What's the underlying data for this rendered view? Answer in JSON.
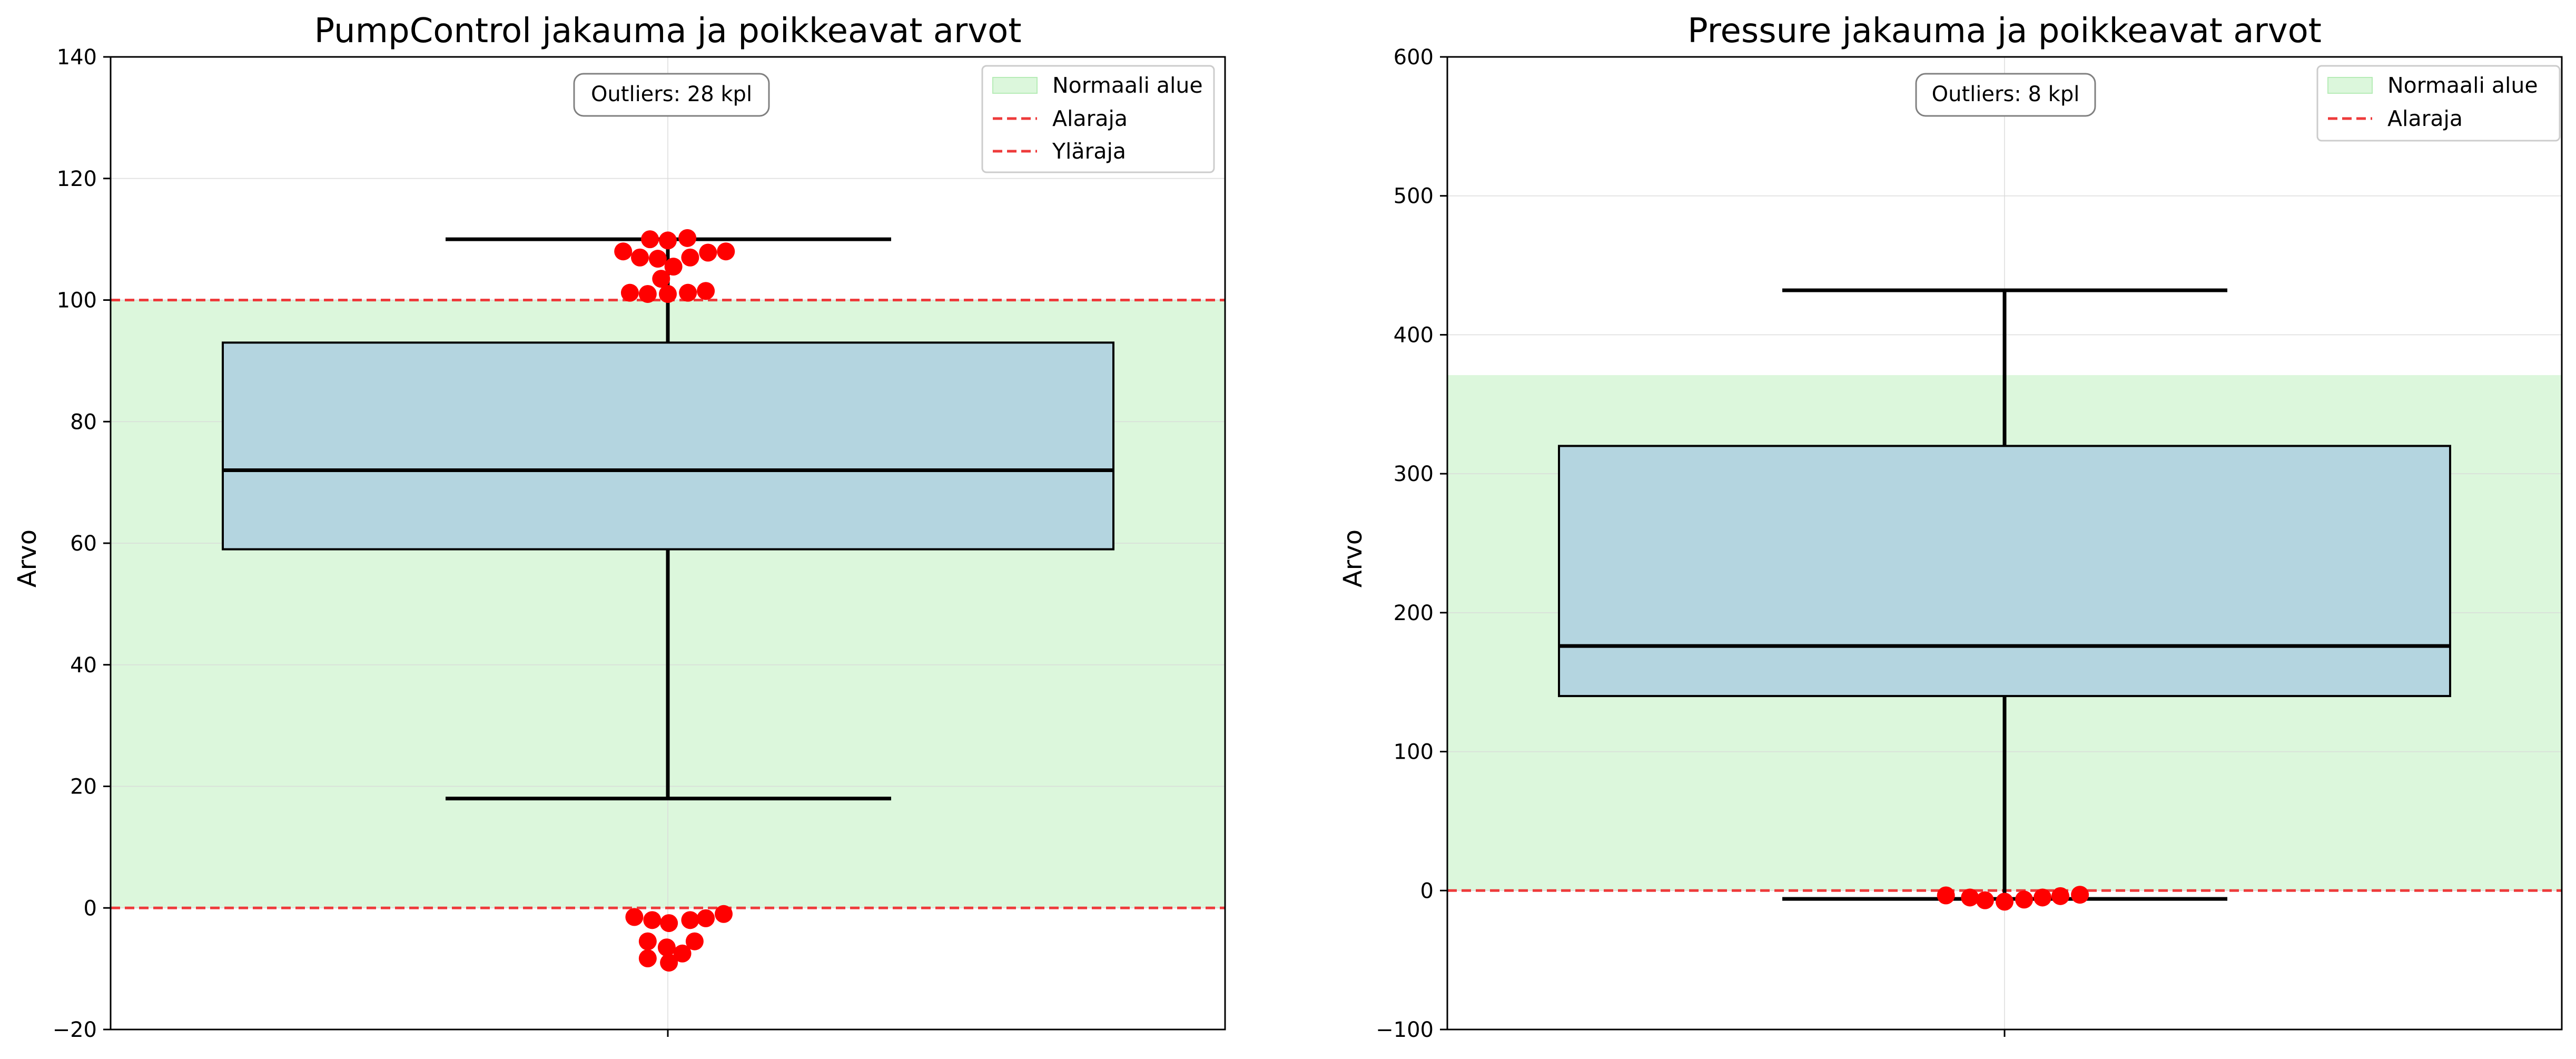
{
  "chart_data": [
    {
      "type": "box",
      "title": "PumpControl jakauma ja poikkeavat arvot",
      "xlabel": "",
      "ylabel": "Arvo",
      "ylim": [
        -20,
        140
      ],
      "yticks": [
        -20,
        0,
        20,
        40,
        60,
        80,
        100,
        120,
        140
      ],
      "grid": true,
      "legend_position": "top-right",
      "legend": [
        "Normaali alue",
        "Alaraja",
        "Yläraja"
      ],
      "normal_range": [
        0,
        100
      ],
      "lower_limit": 0,
      "upper_limit": 100,
      "box": {
        "whisker_low": 18,
        "q1": 59,
        "median": 72,
        "q3": 93,
        "whisker_high": 110
      },
      "annotation": "Outliers: 28 kpl",
      "outliers": [
        {
          "dx": -0.08,
          "y": 108.0
        },
        {
          "dx": -0.05,
          "y": 107.0
        },
        {
          "dx": -0.018,
          "y": 106.8
        },
        {
          "dx": 0.01,
          "y": 105.5
        },
        {
          "dx": 0.04,
          "y": 107.0
        },
        {
          "dx": 0.072,
          "y": 107.8
        },
        {
          "dx": 0.104,
          "y": 108.0
        },
        {
          "dx": -0.032,
          "y": 110.0
        },
        {
          "dx": 0.0,
          "y": 109.8
        },
        {
          "dx": 0.035,
          "y": 110.2
        },
        {
          "dx": -0.012,
          "y": 103.5
        },
        {
          "dx": -0.068,
          "y": 101.2
        },
        {
          "dx": -0.036,
          "y": 101.0
        },
        {
          "dx": 0.0,
          "y": 101.0
        },
        {
          "dx": 0.036,
          "y": 101.2
        },
        {
          "dx": 0.068,
          "y": 101.5
        },
        {
          "dx": -0.028,
          "y": -2.0
        },
        {
          "dx": 0.002,
          "y": -2.5
        },
        {
          "dx": 0.04,
          "y": -2.0
        },
        {
          "dx": 0.068,
          "y": -1.7
        },
        {
          "dx": 0.1,
          "y": -1.0
        },
        {
          "dx": -0.06,
          "y": -1.5
        },
        {
          "dx": -0.036,
          "y": -5.5
        },
        {
          "dx": -0.002,
          "y": -6.5
        },
        {
          "dx": 0.048,
          "y": -5.5
        },
        {
          "dx": -0.036,
          "y": -8.3
        },
        {
          "dx": 0.002,
          "y": -9.0
        },
        {
          "dx": 0.026,
          "y": -7.5
        }
      ]
    },
    {
      "type": "box",
      "title": "Pressure jakauma ja poikkeavat arvot",
      "xlabel": "",
      "ylabel": "Arvo",
      "ylim": [
        -100,
        600
      ],
      "yticks": [
        -100,
        0,
        100,
        200,
        300,
        400,
        500,
        600
      ],
      "grid": true,
      "legend_position": "top-right",
      "legend": [
        "Normaali alue",
        "Alaraja"
      ],
      "normal_range": [
        0,
        371
      ],
      "lower_limit": 0,
      "box": {
        "whisker_low": -6,
        "q1": 140,
        "median": 176,
        "q3": 320,
        "whisker_high": 432
      },
      "annotation": "Outliers: 8 kpl",
      "outliers": [
        {
          "dx": -0.105,
          "y": -3.5
        },
        {
          "dx": -0.062,
          "y": -5.0
        },
        {
          "dx": -0.035,
          "y": -7.0
        },
        {
          "dx": 0.0,
          "y": -8.0
        },
        {
          "dx": 0.035,
          "y": -6.5
        },
        {
          "dx": 0.068,
          "y": -5.0
        },
        {
          "dx": 0.1,
          "y": -4.0
        },
        {
          "dx": 0.135,
          "y": -3.0
        }
      ]
    }
  ]
}
